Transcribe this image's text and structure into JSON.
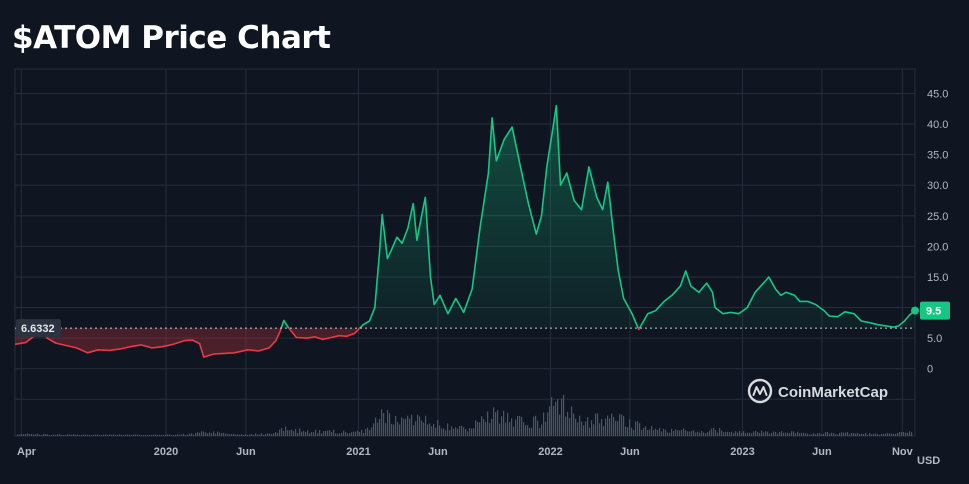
{
  "title": "$ATOM Price Chart",
  "brand": {
    "name": "CoinMarketCap",
    "icon": "coinmarketcap-logo-icon"
  },
  "colors": {
    "background": "#0f1621",
    "grid": "#252d3a",
    "up": "#16c784",
    "down": "#ea3943",
    "baseline": "#c7cbd2",
    "volume": "#4a5470"
  },
  "chart_data": {
    "type": "area",
    "series_name": "",
    "currency_label": "USD",
    "baseline_value": 6.6332,
    "baseline_label": "6.6332",
    "last_value": 9.5,
    "last_label": "9.5",
    "ylim": [
      -11,
      49
    ],
    "y_ticks": [
      0,
      5.0,
      10.0,
      15.0,
      20.0,
      25.0,
      30.0,
      35.0,
      40.0,
      45.0
    ],
    "y_tick_labels": [
      "0",
      "5.0",
      "10.0",
      "15.0",
      "20.0",
      "25.0",
      "30.0",
      "35.0",
      "40.0",
      "45.0"
    ],
    "x_tick_labels": [
      {
        "date": "2019-04",
        "label": "Apr"
      },
      {
        "date": "2020-01",
        "label": "2020"
      },
      {
        "date": "2020-06",
        "label": "Jun"
      },
      {
        "date": "2021-01",
        "label": "2021"
      },
      {
        "date": "2021-06",
        "label": "Jun"
      },
      {
        "date": "2022-01",
        "label": "2022"
      },
      {
        "date": "2022-06",
        "label": "Jun"
      },
      {
        "date": "2023-01",
        "label": "2023"
      },
      {
        "date": "2023-06",
        "label": "Jun"
      },
      {
        "date": "2023-11",
        "label": "Nov"
      }
    ],
    "x_range": [
      "2019-03-20",
      "2023-11-25"
    ],
    "price": [
      [
        "2019-03-20",
        4.0
      ],
      [
        "2019-04-10",
        4.3
      ],
      [
        "2019-04-25",
        5.3
      ],
      [
        "2019-05-05",
        6.9
      ],
      [
        "2019-05-20",
        5.0
      ],
      [
        "2019-06-05",
        4.2
      ],
      [
        "2019-06-25",
        3.8
      ],
      [
        "2019-07-15",
        3.4
      ],
      [
        "2019-08-05",
        2.6
      ],
      [
        "2019-08-25",
        3.1
      ],
      [
        "2019-09-15",
        3.0
      ],
      [
        "2019-10-05",
        3.2
      ],
      [
        "2019-10-25",
        3.6
      ],
      [
        "2019-11-15",
        3.9
      ],
      [
        "2019-12-05",
        3.4
      ],
      [
        "2019-12-25",
        3.6
      ],
      [
        "2020-01-15",
        4.0
      ],
      [
        "2020-02-05",
        4.6
      ],
      [
        "2020-02-20",
        4.7
      ],
      [
        "2020-03-05",
        4.1
      ],
      [
        "2020-03-13",
        1.9
      ],
      [
        "2020-04-01",
        2.4
      ],
      [
        "2020-04-20",
        2.5
      ],
      [
        "2020-05-10",
        2.6
      ],
      [
        "2020-06-05",
        3.1
      ],
      [
        "2020-06-25",
        2.9
      ],
      [
        "2020-07-15",
        3.4
      ],
      [
        "2020-07-28",
        4.6
      ],
      [
        "2020-08-05",
        6.1
      ],
      [
        "2020-08-12",
        7.9
      ],
      [
        "2020-08-20",
        6.8
      ],
      [
        "2020-09-05",
        5.1
      ],
      [
        "2020-09-25",
        5.0
      ],
      [
        "2020-10-10",
        5.2
      ],
      [
        "2020-10-25",
        4.8
      ],
      [
        "2020-11-10",
        5.1
      ],
      [
        "2020-11-25",
        5.4
      ],
      [
        "2020-12-10",
        5.3
      ],
      [
        "2020-12-25",
        5.8
      ],
      [
        "2021-01-10",
        7.2
      ],
      [
        "2021-01-22",
        7.8
      ],
      [
        "2021-02-01",
        10.0
      ],
      [
        "2021-02-10",
        19.0
      ],
      [
        "2021-02-15",
        25.2
      ],
      [
        "2021-02-25",
        18.0
      ],
      [
        "2021-03-05",
        19.5
      ],
      [
        "2021-03-15",
        21.5
      ],
      [
        "2021-03-25",
        20.5
      ],
      [
        "2021-04-05",
        23.0
      ],
      [
        "2021-04-15",
        27.0
      ],
      [
        "2021-04-22",
        21.0
      ],
      [
        "2021-05-01",
        25.0
      ],
      [
        "2021-05-08",
        28.0
      ],
      [
        "2021-05-18",
        15.0
      ],
      [
        "2021-05-25",
        10.5
      ],
      [
        "2021-06-05",
        12.0
      ],
      [
        "2021-06-20",
        9.0
      ],
      [
        "2021-07-05",
        11.5
      ],
      [
        "2021-07-20",
        9.2
      ],
      [
        "2021-08-05",
        13.0
      ],
      [
        "2021-08-20",
        23.0
      ],
      [
        "2021-09-05",
        32.0
      ],
      [
        "2021-09-12",
        41.0
      ],
      [
        "2021-09-20",
        34.0
      ],
      [
        "2021-10-05",
        37.5
      ],
      [
        "2021-10-20",
        39.5
      ],
      [
        "2021-11-05",
        33.0
      ],
      [
        "2021-11-20",
        27.0
      ],
      [
        "2021-12-05",
        22.0
      ],
      [
        "2021-12-15",
        25.0
      ],
      [
        "2021-12-25",
        33.0
      ],
      [
        "2022-01-05",
        39.0
      ],
      [
        "2022-01-12",
        43.0
      ],
      [
        "2022-01-20",
        30.0
      ],
      [
        "2022-02-01",
        32.0
      ],
      [
        "2022-02-15",
        27.5
      ],
      [
        "2022-03-01",
        26.0
      ],
      [
        "2022-03-15",
        33.0
      ],
      [
        "2022-03-30",
        28.0
      ],
      [
        "2022-04-10",
        26.0
      ],
      [
        "2022-04-20",
        30.5
      ],
      [
        "2022-05-01",
        22.0
      ],
      [
        "2022-05-10",
        16.0
      ],
      [
        "2022-05-20",
        11.5
      ],
      [
        "2022-06-05",
        9.0
      ],
      [
        "2022-06-18",
        6.4
      ],
      [
        "2022-07-05",
        9.0
      ],
      [
        "2022-07-20",
        9.5
      ],
      [
        "2022-08-05",
        11.0
      ],
      [
        "2022-08-20",
        12.0
      ],
      [
        "2022-09-05",
        13.5
      ],
      [
        "2022-09-15",
        16.0
      ],
      [
        "2022-09-25",
        13.5
      ],
      [
        "2022-10-10",
        12.5
      ],
      [
        "2022-10-25",
        14.0
      ],
      [
        "2022-11-05",
        12.5
      ],
      [
        "2022-11-10",
        10.0
      ],
      [
        "2022-11-25",
        9.0
      ],
      [
        "2022-12-10",
        9.2
      ],
      [
        "2022-12-25",
        9.0
      ],
      [
        "2023-01-10",
        10.0
      ],
      [
        "2023-01-25",
        12.5
      ],
      [
        "2023-02-10",
        14.0
      ],
      [
        "2023-02-20",
        15.0
      ],
      [
        "2023-03-05",
        13.0
      ],
      [
        "2023-03-15",
        12.0
      ],
      [
        "2023-03-25",
        12.5
      ],
      [
        "2023-04-10",
        12.0
      ],
      [
        "2023-04-20",
        11.0
      ],
      [
        "2023-05-05",
        11.0
      ],
      [
        "2023-05-20",
        10.5
      ],
      [
        "2023-06-05",
        9.5
      ],
      [
        "2023-06-15",
        8.6
      ],
      [
        "2023-07-01",
        8.5
      ],
      [
        "2023-07-15",
        9.3
      ],
      [
        "2023-08-01",
        9.0
      ],
      [
        "2023-08-15",
        7.8
      ],
      [
        "2023-09-01",
        7.5
      ],
      [
        "2023-09-15",
        7.2
      ],
      [
        "2023-10-01",
        7.0
      ],
      [
        "2023-10-15",
        6.8
      ],
      [
        "2023-10-25",
        7.0
      ],
      [
        "2023-11-05",
        7.8
      ],
      [
        "2023-11-15",
        8.8
      ],
      [
        "2023-11-25",
        9.5
      ]
    ],
    "volume_relative": [
      [
        "2019-04",
        0.05
      ],
      [
        "2019-06",
        0.04
      ],
      [
        "2019-08",
        0.03
      ],
      [
        "2019-10",
        0.03
      ],
      [
        "2019-12",
        0.03
      ],
      [
        "2020-02",
        0.05
      ],
      [
        "2020-03",
        0.12
      ],
      [
        "2020-05",
        0.04
      ],
      [
        "2020-07",
        0.06
      ],
      [
        "2020-08",
        0.2
      ],
      [
        "2020-09",
        0.15
      ],
      [
        "2020-10",
        0.12
      ],
      [
        "2020-11",
        0.13
      ],
      [
        "2020-12",
        0.1
      ],
      [
        "2021-01",
        0.15
      ],
      [
        "2021-02",
        0.55
      ],
      [
        "2021-03",
        0.42
      ],
      [
        "2021-04",
        0.48
      ],
      [
        "2021-05",
        0.5
      ],
      [
        "2021-06",
        0.3
      ],
      [
        "2021-07",
        0.2
      ],
      [
        "2021-08",
        0.35
      ],
      [
        "2021-09",
        0.75
      ],
      [
        "2021-10",
        0.45
      ],
      [
        "2021-11",
        0.38
      ],
      [
        "2021-12",
        0.4
      ],
      [
        "2022-01",
        1.0
      ],
      [
        "2022-02",
        0.5
      ],
      [
        "2022-03",
        0.45
      ],
      [
        "2022-04",
        0.48
      ],
      [
        "2022-05",
        0.42
      ],
      [
        "2022-06",
        0.3
      ],
      [
        "2022-07",
        0.18
      ],
      [
        "2022-08",
        0.14
      ],
      [
        "2022-09",
        0.16
      ],
      [
        "2022-10",
        0.12
      ],
      [
        "2022-11",
        0.18
      ],
      [
        "2022-12",
        0.1
      ],
      [
        "2023-01",
        0.1
      ],
      [
        "2023-02",
        0.12
      ],
      [
        "2023-03",
        0.1
      ],
      [
        "2023-04",
        0.09
      ],
      [
        "2023-05",
        0.07
      ],
      [
        "2023-06",
        0.08
      ],
      [
        "2023-07",
        0.08
      ],
      [
        "2023-08",
        0.06
      ],
      [
        "2023-09",
        0.05
      ],
      [
        "2023-10",
        0.07
      ],
      [
        "2023-11",
        0.1
      ]
    ]
  }
}
